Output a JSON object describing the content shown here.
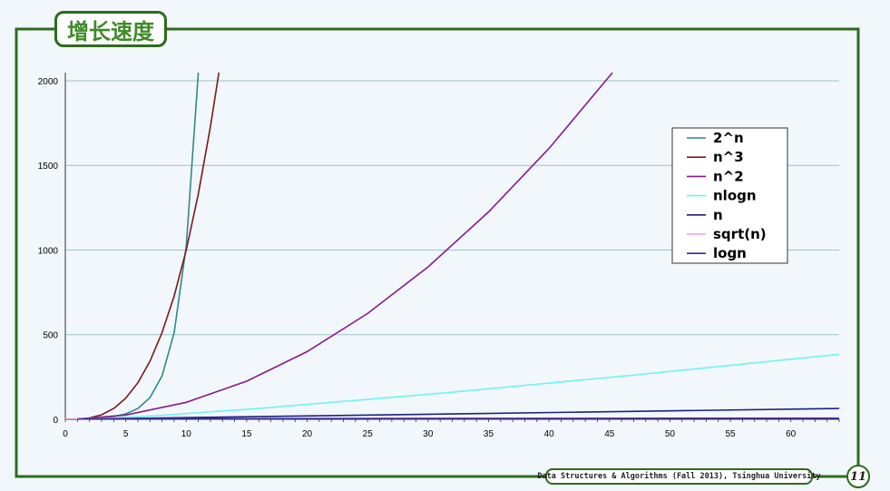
{
  "slide": {
    "title": "增长速度",
    "footer": "Data Structures & Algorithms (Fall 2013), Tsinghua University",
    "page_number": "11",
    "colors": {
      "frame": "#2e6b1e",
      "title_text": "#3f8a2a",
      "background": "#f2f7fb"
    }
  },
  "chart_data": {
    "type": "line",
    "title": "",
    "xlabel": "",
    "ylabel": "",
    "xlim": [
      0,
      64
    ],
    "ylim": [
      0,
      2048
    ],
    "x_ticks": [
      0,
      5,
      10,
      15,
      20,
      25,
      30,
      35,
      40,
      45,
      50,
      55,
      60
    ],
    "y_ticks": [
      0,
      500,
      1000,
      1500,
      2000
    ],
    "y_gridlines": true,
    "legend_placement": "right",
    "series": [
      {
        "name": "2^n",
        "color": "#2f8a8a",
        "x": [
          1,
          2,
          3,
          4,
          5,
          6,
          7,
          8,
          9,
          10,
          11
        ],
        "y": [
          2,
          4,
          8,
          16,
          32,
          64,
          128,
          256,
          512,
          1024,
          2048
        ]
      },
      {
        "name": "n^3",
        "color": "#7a1a1a",
        "x": [
          1,
          2,
          3,
          4,
          5,
          6,
          7,
          8,
          9,
          10,
          11,
          12,
          12.7
        ],
        "y": [
          1,
          8,
          27,
          64,
          125,
          216,
          343,
          512,
          729,
          1000,
          1331,
          1728,
          2048
        ]
      },
      {
        "name": "n^2",
        "color": "#8b1a8b",
        "x": [
          1,
          5,
          10,
          15,
          20,
          25,
          30,
          35,
          40,
          45.25
        ],
        "y": [
          1,
          25,
          100,
          225,
          400,
          625,
          900,
          1225,
          1600,
          2048
        ]
      },
      {
        "name": "nlogn",
        "color": "#6ff2f2",
        "x": [
          1,
          2,
          4,
          8,
          16,
          32,
          48,
          64
        ],
        "y": [
          0,
          2,
          8,
          24,
          64,
          160,
          268,
          384
        ]
      },
      {
        "name": "n",
        "color": "#1a237e",
        "x": [
          0,
          64
        ],
        "y": [
          0,
          64
        ]
      },
      {
        "name": "sqrt(n)",
        "color": "#f2a0cf",
        "x": [
          0,
          4,
          16,
          36,
          64
        ],
        "y": [
          0,
          2,
          4,
          6,
          8
        ]
      },
      {
        "name": "logn",
        "color": "#3a2a8a",
        "x": [
          1,
          2,
          4,
          8,
          16,
          32,
          64
        ],
        "y": [
          0,
          1,
          2,
          3,
          4,
          5,
          6
        ]
      }
    ]
  }
}
